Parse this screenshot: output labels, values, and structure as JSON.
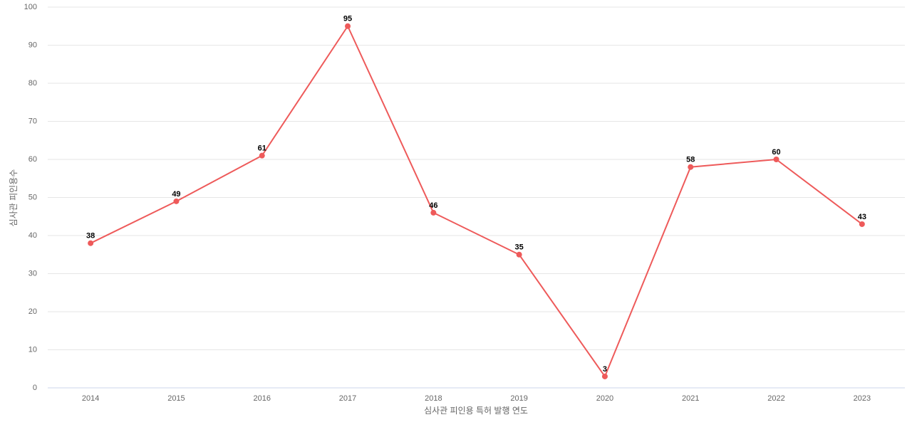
{
  "chart_data": {
    "type": "line",
    "x_label": "심사관 피인용 특허 발행 연도",
    "y_label": "심사관 피인용수",
    "categories": [
      "2014",
      "2015",
      "2016",
      "2017",
      "2018",
      "2019",
      "2020",
      "2021",
      "2022",
      "2023"
    ],
    "values": [
      38,
      49,
      61,
      95,
      46,
      35,
      3,
      58,
      60,
      43
    ],
    "color": "#ee5a5a",
    "ylim": [
      0,
      100
    ],
    "yticks": [
      0,
      10,
      20,
      30,
      40,
      50,
      60,
      70,
      80,
      90,
      100
    ],
    "grid": true
  }
}
